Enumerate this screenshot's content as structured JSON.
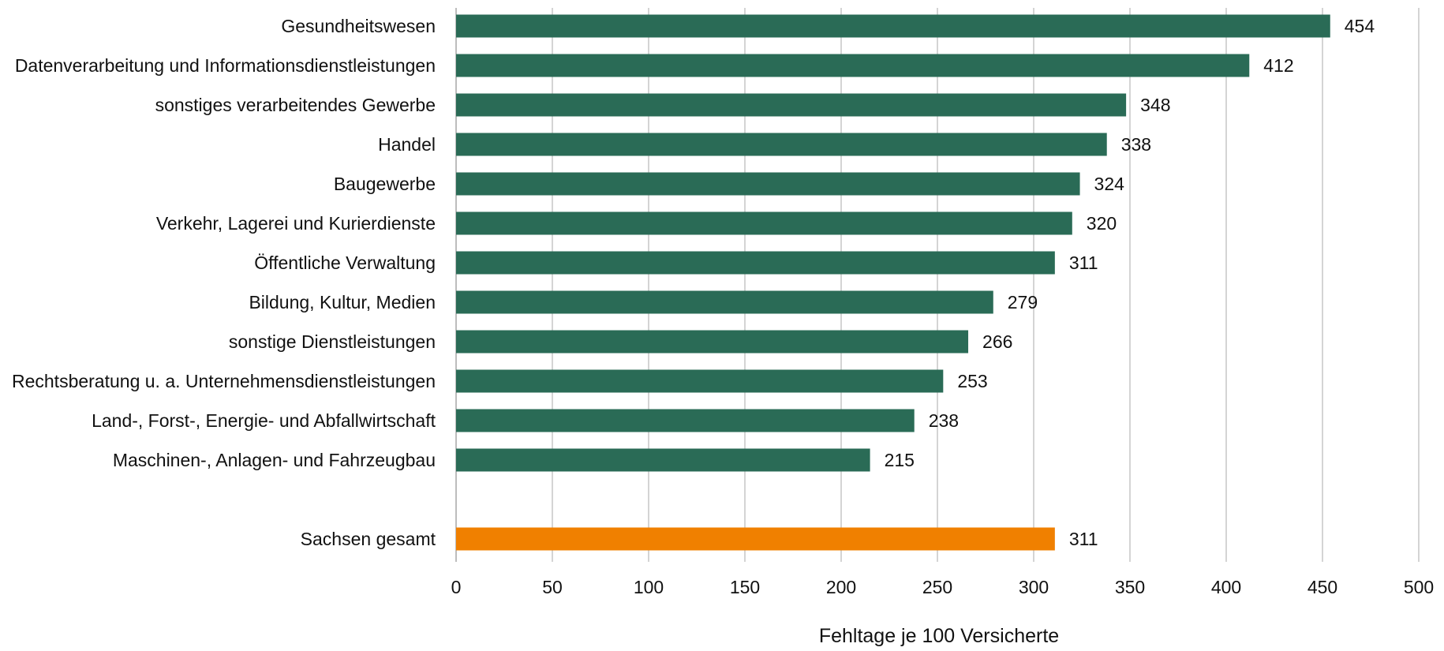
{
  "chart_data": {
    "type": "bar",
    "orientation": "horizontal",
    "categories": [
      "Gesundheitswesen",
      "Datenverarbeitung und Informationsdienstleistungen",
      "sonstiges verarbeitendes Gewerbe",
      "Handel",
      "Baugewerbe",
      "Verkehr, Lagerei und Kurierdienste",
      "Öffentliche Verwaltung",
      "Bildung, Kultur, Medien",
      "sonstige Dienstleistungen",
      "Rechtsberatung u. a. Unternehmensdienstleistungen",
      "Land-, Forst-,  Energie- und Abfallwirtschaft",
      "Maschinen-, Anlagen- und Fahrzeugbau",
      "",
      "Sachsen gesamt"
    ],
    "values": [
      454,
      412,
      348,
      338,
      324,
      320,
      311,
      279,
      266,
      253,
      238,
      215,
      null,
      311
    ],
    "highlight_category": "Sachsen gesamt",
    "xlabel": "Fehltage je 100 Versicherte",
    "ylabel": "",
    "xlim": [
      0,
      500
    ],
    "xticks": [
      "0",
      "50",
      "100",
      "150",
      "200",
      "250",
      "300",
      "350",
      "400",
      "450",
      "500"
    ],
    "grid": "vertical",
    "legend": "none",
    "colors": {
      "bar": "#2a6b56",
      "highlight": "#f08000"
    }
  }
}
